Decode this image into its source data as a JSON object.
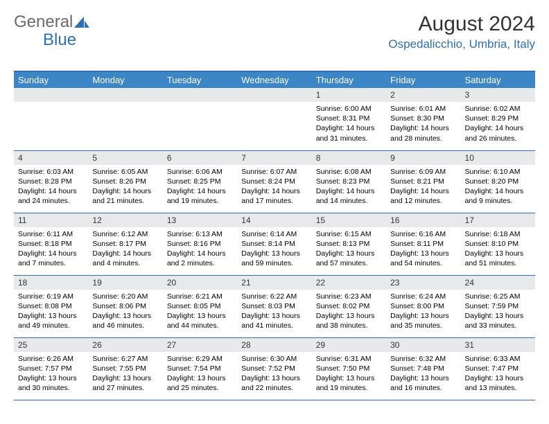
{
  "logo": {
    "text1": "General",
    "text2": "Blue"
  },
  "title": "August 2024",
  "location": "Ospedalicchio, Umbria, Italy",
  "colors": {
    "accent": "#2f6fb3",
    "header_bg": "#3d86c6",
    "daynum_bg": "#e7e9ea",
    "text": "#000000",
    "title_text": "#333333"
  },
  "weekday_labels": [
    "Sunday",
    "Monday",
    "Tuesday",
    "Wednesday",
    "Thursday",
    "Friday",
    "Saturday"
  ],
  "weeks": [
    [
      {
        "n": "",
        "sr": "",
        "ss": "",
        "dl": ""
      },
      {
        "n": "",
        "sr": "",
        "ss": "",
        "dl": ""
      },
      {
        "n": "",
        "sr": "",
        "ss": "",
        "dl": ""
      },
      {
        "n": "",
        "sr": "",
        "ss": "",
        "dl": ""
      },
      {
        "n": "1",
        "sr": "Sunrise: 6:00 AM",
        "ss": "Sunset: 8:31 PM",
        "dl": "Daylight: 14 hours and 31 minutes."
      },
      {
        "n": "2",
        "sr": "Sunrise: 6:01 AM",
        "ss": "Sunset: 8:30 PM",
        "dl": "Daylight: 14 hours and 28 minutes."
      },
      {
        "n": "3",
        "sr": "Sunrise: 6:02 AM",
        "ss": "Sunset: 8:29 PM",
        "dl": "Daylight: 14 hours and 26 minutes."
      }
    ],
    [
      {
        "n": "4",
        "sr": "Sunrise: 6:03 AM",
        "ss": "Sunset: 8:28 PM",
        "dl": "Daylight: 14 hours and 24 minutes."
      },
      {
        "n": "5",
        "sr": "Sunrise: 6:05 AM",
        "ss": "Sunset: 8:26 PM",
        "dl": "Daylight: 14 hours and 21 minutes."
      },
      {
        "n": "6",
        "sr": "Sunrise: 6:06 AM",
        "ss": "Sunset: 8:25 PM",
        "dl": "Daylight: 14 hours and 19 minutes."
      },
      {
        "n": "7",
        "sr": "Sunrise: 6:07 AM",
        "ss": "Sunset: 8:24 PM",
        "dl": "Daylight: 14 hours and 17 minutes."
      },
      {
        "n": "8",
        "sr": "Sunrise: 6:08 AM",
        "ss": "Sunset: 8:23 PM",
        "dl": "Daylight: 14 hours and 14 minutes."
      },
      {
        "n": "9",
        "sr": "Sunrise: 6:09 AM",
        "ss": "Sunset: 8:21 PM",
        "dl": "Daylight: 14 hours and 12 minutes."
      },
      {
        "n": "10",
        "sr": "Sunrise: 6:10 AM",
        "ss": "Sunset: 8:20 PM",
        "dl": "Daylight: 14 hours and 9 minutes."
      }
    ],
    [
      {
        "n": "11",
        "sr": "Sunrise: 6:11 AM",
        "ss": "Sunset: 8:18 PM",
        "dl": "Daylight: 14 hours and 7 minutes."
      },
      {
        "n": "12",
        "sr": "Sunrise: 6:12 AM",
        "ss": "Sunset: 8:17 PM",
        "dl": "Daylight: 14 hours and 4 minutes."
      },
      {
        "n": "13",
        "sr": "Sunrise: 6:13 AM",
        "ss": "Sunset: 8:16 PM",
        "dl": "Daylight: 14 hours and 2 minutes."
      },
      {
        "n": "14",
        "sr": "Sunrise: 6:14 AM",
        "ss": "Sunset: 8:14 PM",
        "dl": "Daylight: 13 hours and 59 minutes."
      },
      {
        "n": "15",
        "sr": "Sunrise: 6:15 AM",
        "ss": "Sunset: 8:13 PM",
        "dl": "Daylight: 13 hours and 57 minutes."
      },
      {
        "n": "16",
        "sr": "Sunrise: 6:16 AM",
        "ss": "Sunset: 8:11 PM",
        "dl": "Daylight: 13 hours and 54 minutes."
      },
      {
        "n": "17",
        "sr": "Sunrise: 6:18 AM",
        "ss": "Sunset: 8:10 PM",
        "dl": "Daylight: 13 hours and 51 minutes."
      }
    ],
    [
      {
        "n": "18",
        "sr": "Sunrise: 6:19 AM",
        "ss": "Sunset: 8:08 PM",
        "dl": "Daylight: 13 hours and 49 minutes."
      },
      {
        "n": "19",
        "sr": "Sunrise: 6:20 AM",
        "ss": "Sunset: 8:06 PM",
        "dl": "Daylight: 13 hours and 46 minutes."
      },
      {
        "n": "20",
        "sr": "Sunrise: 6:21 AM",
        "ss": "Sunset: 8:05 PM",
        "dl": "Daylight: 13 hours and 44 minutes."
      },
      {
        "n": "21",
        "sr": "Sunrise: 6:22 AM",
        "ss": "Sunset: 8:03 PM",
        "dl": "Daylight: 13 hours and 41 minutes."
      },
      {
        "n": "22",
        "sr": "Sunrise: 6:23 AM",
        "ss": "Sunset: 8:02 PM",
        "dl": "Daylight: 13 hours and 38 minutes."
      },
      {
        "n": "23",
        "sr": "Sunrise: 6:24 AM",
        "ss": "Sunset: 8:00 PM",
        "dl": "Daylight: 13 hours and 35 minutes."
      },
      {
        "n": "24",
        "sr": "Sunrise: 6:25 AM",
        "ss": "Sunset: 7:59 PM",
        "dl": "Daylight: 13 hours and 33 minutes."
      }
    ],
    [
      {
        "n": "25",
        "sr": "Sunrise: 6:26 AM",
        "ss": "Sunset: 7:57 PM",
        "dl": "Daylight: 13 hours and 30 minutes."
      },
      {
        "n": "26",
        "sr": "Sunrise: 6:27 AM",
        "ss": "Sunset: 7:55 PM",
        "dl": "Daylight: 13 hours and 27 minutes."
      },
      {
        "n": "27",
        "sr": "Sunrise: 6:29 AM",
        "ss": "Sunset: 7:54 PM",
        "dl": "Daylight: 13 hours and 25 minutes."
      },
      {
        "n": "28",
        "sr": "Sunrise: 6:30 AM",
        "ss": "Sunset: 7:52 PM",
        "dl": "Daylight: 13 hours and 22 minutes."
      },
      {
        "n": "29",
        "sr": "Sunrise: 6:31 AM",
        "ss": "Sunset: 7:50 PM",
        "dl": "Daylight: 13 hours and 19 minutes."
      },
      {
        "n": "30",
        "sr": "Sunrise: 6:32 AM",
        "ss": "Sunset: 7:48 PM",
        "dl": "Daylight: 13 hours and 16 minutes."
      },
      {
        "n": "31",
        "sr": "Sunrise: 6:33 AM",
        "ss": "Sunset: 7:47 PM",
        "dl": "Daylight: 13 hours and 13 minutes."
      }
    ]
  ]
}
